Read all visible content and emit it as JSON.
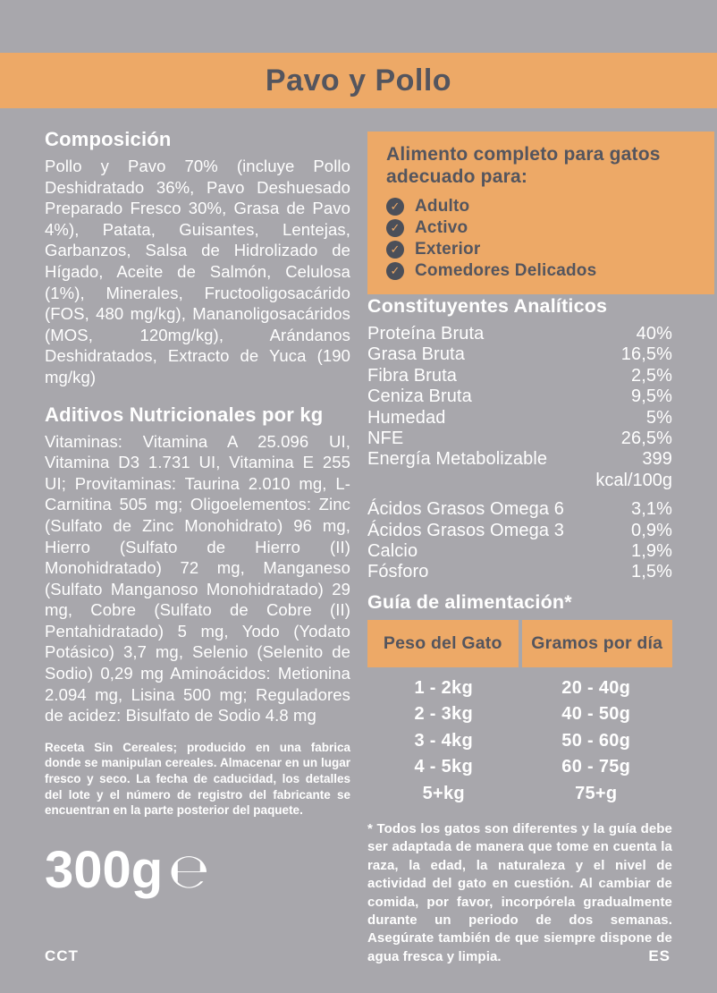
{
  "colors": {
    "background": "#a8a7ac",
    "accent_orange": "#eda967",
    "dark_text": "#54555e",
    "white_text": "#ffffff"
  },
  "header": {
    "title": "Pavo y Pollo"
  },
  "left": {
    "composition": {
      "heading": "Composición",
      "body": "Pollo y Pavo 70% (incluye Pollo Deshidratado 36%, Pavo Deshuesado Preparado Fresco 30%, Grasa de Pavo 4%), Patata, Guisantes, Lentejas, Garbanzos, Salsa de Hidrolizado de Hígado, Aceite de Salmón, Celulosa (1%), Minerales, Fructooligosacárido (FOS, 480 mg/kg), Mananoligosacáridos (MOS, 120mg/kg), Arándanos Deshidratados, Extracto de Yuca (190 mg/kg)"
    },
    "additives": {
      "heading": "Aditivos Nutricionales por kg",
      "body": "Vitaminas: Vitamina A 25.096 UI, Vitamina D3 1.731 UI, Vitamina E 255 UI; Provitaminas: Taurina 2.010 mg, L-Carnitina 505 mg; Oligoelementos: Zinc (Sulfato de Zinc Monohidrato) 96 mg, Hierro (Sulfato de Hierro (II) Monohidratado) 72 mg, Manganeso (Sulfato Manganoso Monohidratado) 29 mg, Cobre (Sulfato de Cobre (II) Pentahidratado) 5 mg, Yodo (Yodato Potásico) 3,7 mg, Selenio (Selenito de Sodio) 0,29 mg Aminoácidos: Metionina 2.094 mg, Lisina 500 mg; Reguladores de acidez: Bisulfato de Sodio 4.8 mg"
    },
    "storage_note": "Receta Sin Cereales; producido en una fabrica donde se manipulan cereales. Almacenar en un lugar fresco y seco. La fecha de caducidad, los detalles del lote y el número de registro del fabricante se encuentran en la parte posterior del paquete.",
    "net_weight": "300g",
    "estimated_sign": "℮",
    "batch_code": "CCT"
  },
  "right": {
    "suitability": {
      "heading": "Alimento completo para gatos adecuado para:",
      "check_glyph": "✓",
      "items": [
        "Adulto",
        "Activo",
        "Exterior",
        "Comedores Delicados"
      ]
    },
    "analytical": {
      "heading": "Constituyentes Analíticos",
      "rows": [
        {
          "label": "Proteína Bruta",
          "value": "40%"
        },
        {
          "label": "Grasa Bruta",
          "value": "16,5%"
        },
        {
          "label": "Fibra Bruta",
          "value": "2,5%"
        },
        {
          "label": "Ceniza Bruta",
          "value": "9,5%"
        },
        {
          "label": "Humedad",
          "value": "5%"
        },
        {
          "label": "NFE",
          "value": "26,5%"
        },
        {
          "label": "Energía Metabolizable",
          "value": "399"
        }
      ],
      "energy_unit": "kcal/100g",
      "rows2": [
        {
          "label": "Ácidos Grasos Omega 6",
          "value": "3,1%"
        },
        {
          "label": "Ácidos Grasos Omega 3",
          "value": "0,9%"
        },
        {
          "label": "Calcio",
          "value": "1,9%"
        },
        {
          "label": "Fósforo",
          "value": "1,5%"
        }
      ]
    },
    "feeding_guide": {
      "heading": "Guía de alimentación*",
      "columns": [
        "Peso del Gato",
        "Gramos por día"
      ],
      "rows": [
        [
          "1 - 2kg",
          "20 - 40g"
        ],
        [
          "2 - 3kg",
          "40 - 50g"
        ],
        [
          "3 - 4kg",
          "50 - 60g"
        ],
        [
          "4 - 5kg",
          "60 - 75g"
        ],
        [
          "5+kg",
          "75+g"
        ]
      ],
      "footnote": "* Todos los gatos son diferentes y la guía debe ser adaptada de manera que tome en cuenta la raza, la edad, la naturaleza y el nivel de actividad del gato en cuestión. Al cambiar de comida, por favor, incorpórela gradualmente durante un periodo de dos semanas. Asegúrate también de que siempre dispone de agua fresca y limpia."
    },
    "lang_code": "ES"
  }
}
